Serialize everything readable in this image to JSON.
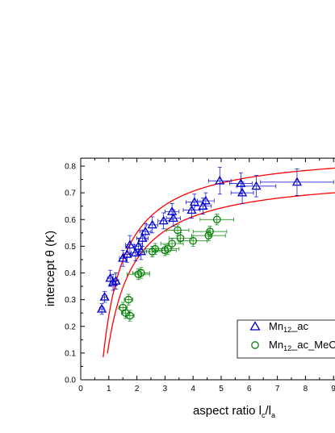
{
  "chart_data": {
    "type": "scatter",
    "title": "",
    "xlabel": {
      "prefix": "aspect ratio l",
      "sub1": "c",
      "mid": "/l",
      "sub2": "a"
    },
    "ylabel": "intercept θ (K)",
    "xlim": [
      0,
      9.3
    ],
    "ylim": [
      0,
      0.83
    ],
    "xticks": [
      0,
      1,
      2,
      3,
      4,
      5,
      6,
      7,
      8,
      9
    ],
    "yticks": [
      0.0,
      0.1,
      0.2,
      0.3,
      0.4,
      0.5,
      0.6,
      0.7,
      0.8
    ],
    "grid": false,
    "legend_position": "bottom-right",
    "colors": {
      "series_ac": "#0000cc",
      "series_meoh": "#008000",
      "fit_curve": "#ff0000",
      "axes": "#000000"
    },
    "series": [
      {
        "name": "Mn12_ac",
        "legend": {
          "base": "Mn",
          "sub": "12",
          "suffix": "_ac"
        },
        "marker": "triangle",
        "points": [
          {
            "x": 0.75,
            "y": 0.265,
            "xerr": 0.08,
            "yerr": 0.02
          },
          {
            "x": 0.85,
            "y": 0.31,
            "xerr": 0.08,
            "yerr": 0.02
          },
          {
            "x": 1.05,
            "y": 0.38,
            "xerr": 0.1,
            "yerr": 0.03
          },
          {
            "x": 1.15,
            "y": 0.365,
            "xerr": 0.1,
            "yerr": 0.03
          },
          {
            "x": 1.25,
            "y": 0.37,
            "xerr": 0.1,
            "yerr": 0.03
          },
          {
            "x": 1.5,
            "y": 0.455,
            "xerr": 0.12,
            "yerr": 0.03
          },
          {
            "x": 1.65,
            "y": 0.47,
            "xerr": 0.12,
            "yerr": 0.03
          },
          {
            "x": 1.75,
            "y": 0.505,
            "xerr": 0.15,
            "yerr": 0.035
          },
          {
            "x": 1.95,
            "y": 0.475,
            "xerr": 0.15,
            "yerr": 0.03
          },
          {
            "x": 2.05,
            "y": 0.5,
            "xerr": 0.15,
            "yerr": 0.03
          },
          {
            "x": 2.15,
            "y": 0.48,
            "xerr": 0.2,
            "yerr": 0.03
          },
          {
            "x": 2.2,
            "y": 0.53,
            "xerr": 0.2,
            "yerr": 0.03
          },
          {
            "x": 2.3,
            "y": 0.555,
            "xerr": 0.2,
            "yerr": 0.03
          },
          {
            "x": 2.55,
            "y": 0.58,
            "xerr": 0.2,
            "yerr": 0.03
          },
          {
            "x": 2.95,
            "y": 0.595,
            "xerr": 0.2,
            "yerr": 0.03
          },
          {
            "x": 3.25,
            "y": 0.63,
            "xerr": 0.25,
            "yerr": 0.03
          },
          {
            "x": 3.3,
            "y": 0.605,
            "xerr": 0.25,
            "yerr": 0.03
          },
          {
            "x": 3.95,
            "y": 0.635,
            "xerr": 0.3,
            "yerr": 0.03
          },
          {
            "x": 4.05,
            "y": 0.665,
            "xerr": 0.3,
            "yerr": 0.03
          },
          {
            "x": 4.35,
            "y": 0.65,
            "xerr": 0.3,
            "yerr": 0.03
          },
          {
            "x": 4.45,
            "y": 0.67,
            "xerr": 0.3,
            "yerr": 0.03
          },
          {
            "x": 4.95,
            "y": 0.745,
            "xerr": 0.4,
            "yerr": 0.05
          },
          {
            "x": 5.7,
            "y": 0.735,
            "xerr": 0.4,
            "yerr": 0.04
          },
          {
            "x": 5.75,
            "y": 0.7,
            "xerr": 0.4,
            "yerr": 0.04
          },
          {
            "x": 6.25,
            "y": 0.725,
            "xerr": 0.7,
            "yerr": 0.04
          },
          {
            "x": 7.7,
            "y": 0.74,
            "xerr": 1.3,
            "yerr": 0.05
          }
        ]
      },
      {
        "name": "Mn12_ac_MeOH",
        "legend": {
          "base": "Mn",
          "sub": "12",
          "suffix": "_ac_MeOH"
        },
        "marker": "circle",
        "points": [
          {
            "x": 1.5,
            "y": 0.27,
            "xerr": 0.15,
            "yerr": 0.02
          },
          {
            "x": 1.6,
            "y": 0.25,
            "xerr": 0.15,
            "yerr": 0.02
          },
          {
            "x": 1.7,
            "y": 0.3,
            "xerr": 0.15,
            "yerr": 0.02
          },
          {
            "x": 1.75,
            "y": 0.24,
            "xerr": 0.15,
            "yerr": 0.02
          },
          {
            "x": 2.05,
            "y": 0.395,
            "xerr": 0.4,
            "yerr": 0.02
          },
          {
            "x": 2.15,
            "y": 0.4,
            "xerr": 0.3,
            "yerr": 0.02
          },
          {
            "x": 2.55,
            "y": 0.48,
            "xerr": 0.35,
            "yerr": 0.02
          },
          {
            "x": 2.65,
            "y": 0.49,
            "xerr": 0.35,
            "yerr": 0.02
          },
          {
            "x": 3.0,
            "y": 0.485,
            "xerr": 0.4,
            "yerr": 0.02
          },
          {
            "x": 3.1,
            "y": 0.49,
            "xerr": 0.4,
            "yerr": 0.02
          },
          {
            "x": 3.25,
            "y": 0.51,
            "xerr": 0.4,
            "yerr": 0.02
          },
          {
            "x": 3.45,
            "y": 0.56,
            "xerr": 0.4,
            "yerr": 0.02
          },
          {
            "x": 3.55,
            "y": 0.53,
            "xerr": 0.4,
            "yerr": 0.02
          },
          {
            "x": 4.0,
            "y": 0.52,
            "xerr": 0.5,
            "yerr": 0.02
          },
          {
            "x": 4.55,
            "y": 0.54,
            "xerr": 0.6,
            "yerr": 0.02
          },
          {
            "x": 4.6,
            "y": 0.555,
            "xerr": 0.6,
            "yerr": 0.02
          },
          {
            "x": 4.85,
            "y": 0.6,
            "xerr": 0.6,
            "yerr": 0.02
          }
        ]
      }
    ],
    "fit_curves": [
      {
        "series": "Mn12_ac",
        "amplitude": 0.861,
        "x0": 0.721,
        "x_start": 0.8,
        "x_end": 9.3
      },
      {
        "series": "Mn12_ac_MeOH",
        "amplitude": 0.771,
        "x0": 0.829,
        "x_start": 0.95,
        "x_end": 9.3
      }
    ]
  }
}
